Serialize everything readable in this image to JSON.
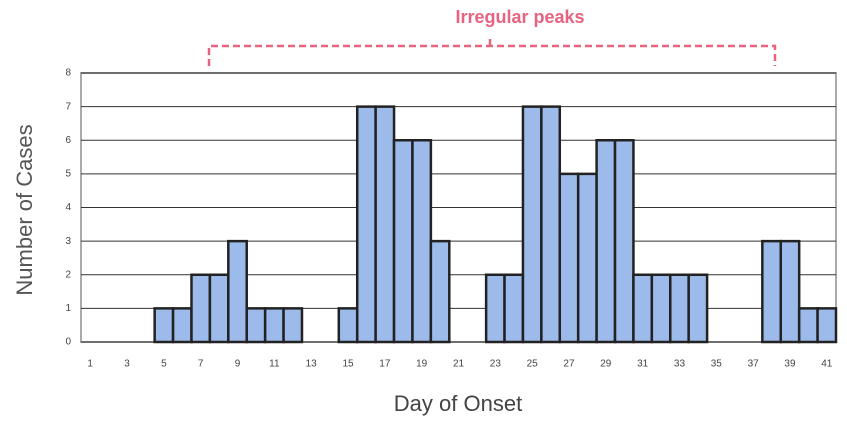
{
  "chart_data": {
    "type": "bar",
    "annotation": "Irregular peaks",
    "ylabel": "Number of Cases",
    "xlabel": "Day of Onset",
    "categories": [
      1,
      null,
      3,
      null,
      5,
      null,
      7,
      null,
      9,
      null,
      11,
      null,
      13,
      null,
      15,
      null,
      17,
      null,
      19,
      null,
      21,
      null,
      23,
      null,
      25,
      null,
      27,
      null,
      29,
      null,
      31,
      null,
      33,
      null,
      35,
      null,
      37,
      null,
      39,
      null,
      41
    ],
    "values": [
      0,
      0,
      0,
      0,
      1,
      1,
      2,
      2,
      3,
      1,
      1,
      1,
      0,
      0,
      1,
      7,
      7,
      6,
      6,
      3,
      0,
      0,
      2,
      2,
      7,
      7,
      5,
      5,
      6,
      6,
      2,
      2,
      2,
      2,
      0,
      0,
      0,
      3,
      3,
      1,
      1
    ],
    "color": "#9dbbea",
    "ylim": [
      0,
      8
    ],
    "yticks": [
      0,
      1,
      2,
      3,
      4,
      5,
      6,
      7,
      8
    ],
    "grid": true
  }
}
